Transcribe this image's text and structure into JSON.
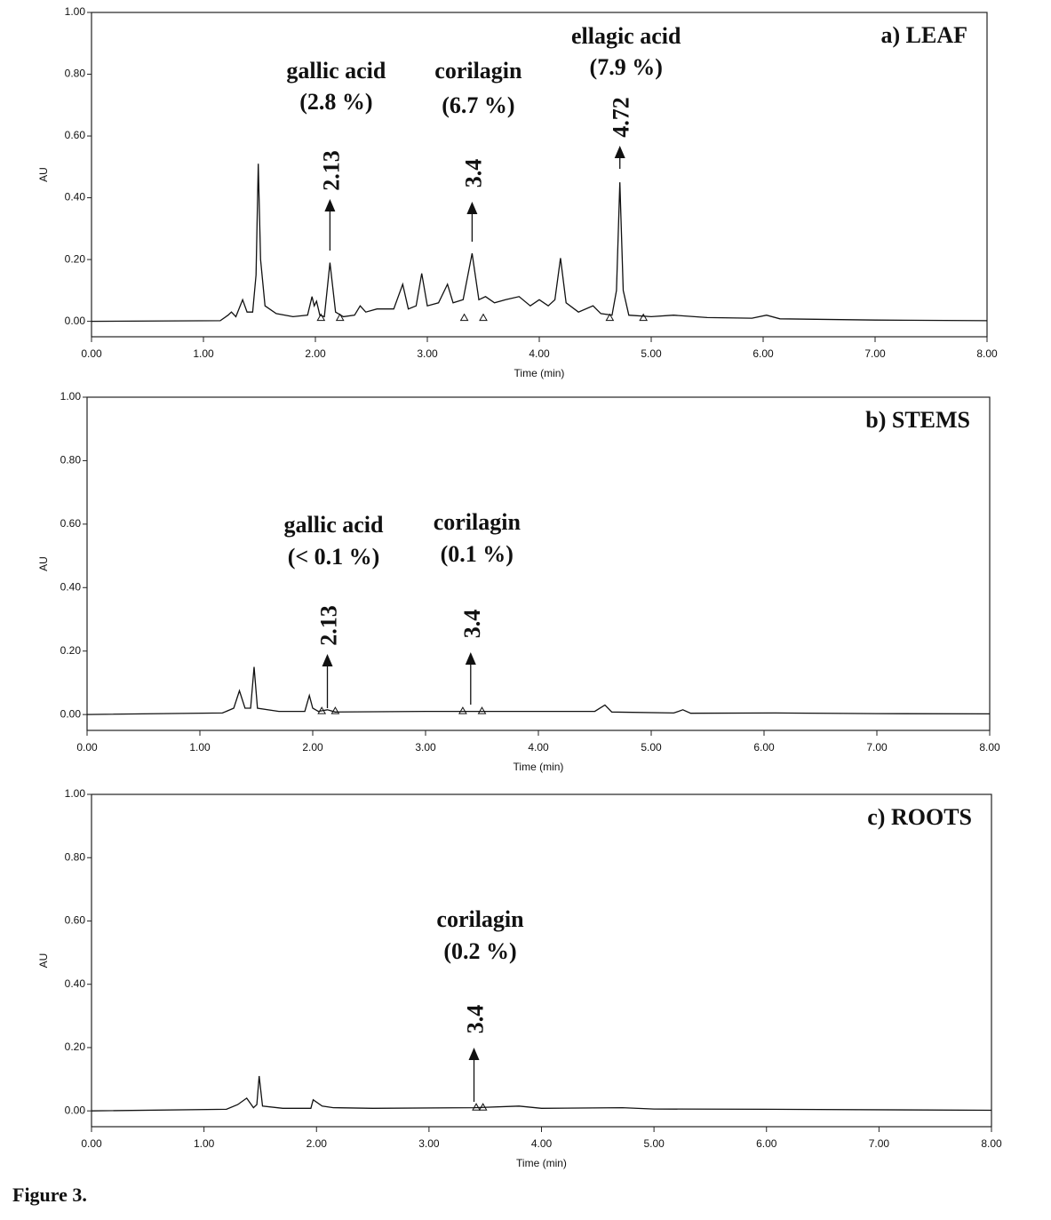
{
  "caption": "Figure 3.",
  "chart_data": [
    {
      "type": "line",
      "title": "a) LEAF",
      "x_label": "Time (min)",
      "y_label": "AU",
      "xlim": [
        0,
        8
      ],
      "ylim": [
        -0.05,
        1.0
      ],
      "xticks": [
        {
          "value": 0,
          "label": "0.00"
        },
        {
          "value": 1,
          "label": "1.00"
        },
        {
          "value": 2,
          "label": "2.00"
        },
        {
          "value": 3,
          "label": "3.00"
        },
        {
          "value": 4,
          "label": "4.00"
        },
        {
          "value": 5,
          "label": "5.00"
        },
        {
          "value": 6,
          "label": "6.00"
        },
        {
          "value": 7,
          "label": "7.00"
        },
        {
          "value": 8,
          "label": "8.00"
        }
      ],
      "yticks": [
        {
          "value": 0,
          "label": "0.00"
        },
        {
          "value": 0.2,
          "label": "0.20"
        },
        {
          "value": 0.4,
          "label": "0.40"
        },
        {
          "value": 0.6,
          "label": "0.60"
        },
        {
          "value": 0.8,
          "label": "0.80"
        },
        {
          "value": 1,
          "label": "1.00"
        }
      ],
      "x": [
        0,
        1.15,
        1.22,
        1.25,
        1.29,
        1.35,
        1.39,
        1.44,
        1.47,
        1.49,
        1.51,
        1.55,
        1.65,
        1.8,
        1.93,
        1.97,
        1.99,
        2.01,
        2.04,
        2.08,
        2.13,
        2.18,
        2.25,
        2.35,
        2.4,
        2.45,
        2.55,
        2.7,
        2.78,
        2.83,
        2.9,
        2.95,
        3.0,
        3.1,
        3.18,
        3.23,
        3.32,
        3.4,
        3.46,
        3.52,
        3.6,
        3.7,
        3.82,
        3.92,
        4.0,
        4.08,
        4.14,
        4.19,
        4.24,
        4.35,
        4.48,
        4.55,
        4.65,
        4.69,
        4.72,
        4.75,
        4.8,
        5.0,
        5.2,
        5.5,
        5.9,
        6.03,
        6.15,
        7,
        8
      ],
      "series": [
        {
          "name": "AU",
          "color": "#111111",
          "values": [
            0,
            0.002,
            0.02,
            0.03,
            0.015,
            0.07,
            0.03,
            0.03,
            0.15,
            0.51,
            0.2,
            0.05,
            0.025,
            0.015,
            0.02,
            0.08,
            0.05,
            0.065,
            0.02,
            0.015,
            0.19,
            0.03,
            0.015,
            0.02,
            0.05,
            0.03,
            0.04,
            0.04,
            0.12,
            0.04,
            0.05,
            0.155,
            0.05,
            0.06,
            0.12,
            0.06,
            0.07,
            0.22,
            0.07,
            0.08,
            0.06,
            0.07,
            0.08,
            0.05,
            0.07,
            0.05,
            0.07,
            0.205,
            0.06,
            0.03,
            0.05,
            0.025,
            0.02,
            0.1,
            0.45,
            0.1,
            0.02,
            0.015,
            0.02,
            0.012,
            0.01,
            0.02,
            0.008,
            0.004,
            0.002
          ]
        }
      ],
      "peak_marks": [
        2.05,
        2.22,
        3.33,
        3.5,
        4.63,
        4.93
      ],
      "annotations": [
        {
          "name": "gallic acid",
          "amount": "(2.8 %)",
          "time": 2.13
        },
        {
          "name": "corilagin",
          "amount": "(6.7 %)",
          "time": 3.4
        },
        {
          "name": "ellagic acid",
          "amount": "(7.9 %)",
          "time": 4.72
        }
      ]
    },
    {
      "type": "line",
      "title": "b) STEMS",
      "x_label": "Time (min)",
      "y_label": "AU",
      "xlim": [
        0,
        8
      ],
      "ylim": [
        -0.05,
        1.0
      ],
      "xticks": [
        {
          "value": 0,
          "label": "0.00"
        },
        {
          "value": 1,
          "label": "1.00"
        },
        {
          "value": 2,
          "label": "2.00"
        },
        {
          "value": 3,
          "label": "3.00"
        },
        {
          "value": 4,
          "label": "4.00"
        },
        {
          "value": 5,
          "label": "5.00"
        },
        {
          "value": 6,
          "label": "6.00"
        },
        {
          "value": 7,
          "label": "7.00"
        },
        {
          "value": 8,
          "label": "8.00"
        }
      ],
      "yticks": [
        {
          "value": 0,
          "label": "0.00"
        },
        {
          "value": 0.2,
          "label": "0.20"
        },
        {
          "value": 0.4,
          "label": "0.40"
        },
        {
          "value": 0.6,
          "label": "0.60"
        },
        {
          "value": 0.8,
          "label": "0.80"
        },
        {
          "value": 1,
          "label": "1.00"
        }
      ],
      "x": [
        0,
        1.2,
        1.3,
        1.35,
        1.4,
        1.45,
        1.48,
        1.51,
        1.7,
        1.93,
        1.97,
        2.0,
        2.05,
        2.13,
        2.2,
        3,
        4.0,
        4.5,
        4.59,
        4.65,
        5.2,
        5.28,
        5.35,
        6.1,
        7,
        8
      ],
      "series": [
        {
          "name": "AU",
          "color": "#111111",
          "values": [
            0,
            0.005,
            0.02,
            0.075,
            0.02,
            0.02,
            0.15,
            0.02,
            0.01,
            0.01,
            0.06,
            0.02,
            0.01,
            0.015,
            0.008,
            0.01,
            0.01,
            0.01,
            0.03,
            0.008,
            0.005,
            0.015,
            0.004,
            0.005,
            0.003,
            0.002
          ]
        }
      ],
      "peak_marks": [
        2.08,
        2.2,
        3.33,
        3.5
      ],
      "annotations": [
        {
          "name": "gallic acid",
          "amount": "(< 0.1 %)",
          "time": 2.13
        },
        {
          "name": "corilagin",
          "amount": "(0.1 %)",
          "time": 3.4
        }
      ]
    },
    {
      "type": "line",
      "title": "c) ROOTS",
      "x_label": "Time (min)",
      "y_label": "AU",
      "xlim": [
        0,
        8
      ],
      "ylim": [
        -0.05,
        1.0
      ],
      "xticks": [
        {
          "value": 0,
          "label": "0.00"
        },
        {
          "value": 1,
          "label": "1.00"
        },
        {
          "value": 2,
          "label": "2.00"
        },
        {
          "value": 3,
          "label": "3.00"
        },
        {
          "value": 4,
          "label": "4.00"
        },
        {
          "value": 5,
          "label": "5.00"
        },
        {
          "value": 6,
          "label": "6.00"
        },
        {
          "value": 7,
          "label": "7.00"
        },
        {
          "value": 8,
          "label": "8.00"
        }
      ],
      "yticks": [
        {
          "value": 0,
          "label": "0.00"
        },
        {
          "value": 0.2,
          "label": "0.20"
        },
        {
          "value": 0.4,
          "label": "0.40"
        },
        {
          "value": 0.6,
          "label": "0.60"
        },
        {
          "value": 0.8,
          "label": "0.80"
        },
        {
          "value": 1,
          "label": "1.00"
        }
      ],
      "x": [
        0,
        1.2,
        1.3,
        1.38,
        1.44,
        1.47,
        1.49,
        1.52,
        1.7,
        1.95,
        1.97,
        2.05,
        2.15,
        2.5,
        3.4,
        3.8,
        4.0,
        4.72,
        5.0,
        6,
        8
      ],
      "series": [
        {
          "name": "AU",
          "color": "#111111",
          "values": [
            0,
            0.005,
            0.02,
            0.04,
            0.01,
            0.02,
            0.11,
            0.015,
            0.008,
            0.008,
            0.035,
            0.015,
            0.01,
            0.008,
            0.01,
            0.015,
            0.008,
            0.01,
            0.006,
            0.005,
            0.002
          ]
        }
      ],
      "peak_marks": [
        3.42,
        3.48
      ],
      "annotations": [
        {
          "name": "corilagin",
          "amount": "(0.2 %)",
          "time": 3.4
        }
      ]
    }
  ]
}
